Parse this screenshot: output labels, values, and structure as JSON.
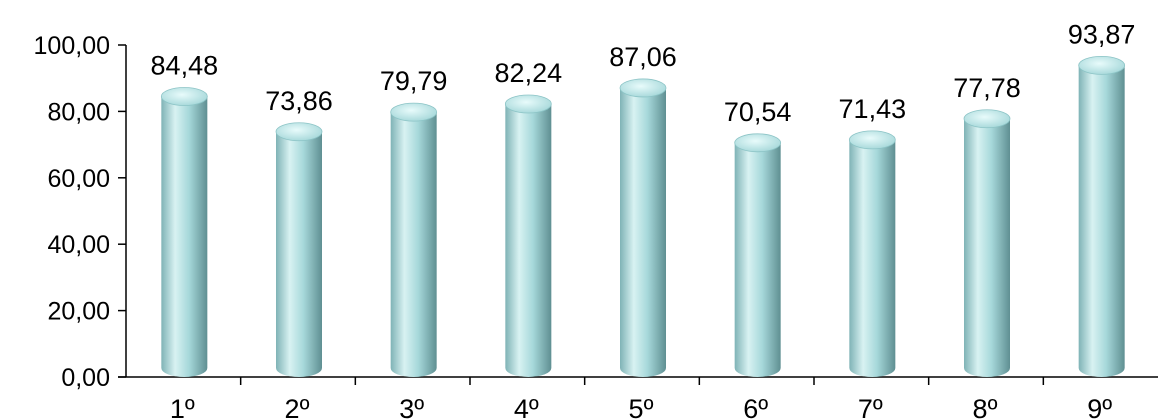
{
  "chart_data": {
    "type": "bar",
    "categories": [
      "1º",
      "2º",
      "3º",
      "4º",
      "5º",
      "6º",
      "7º",
      "8º",
      "9º"
    ],
    "values": [
      84.48,
      73.86,
      79.79,
      82.24,
      87.06,
      70.54,
      71.43,
      77.78,
      93.87
    ],
    "value_labels": [
      "84,48",
      "73,86",
      "79,79",
      "82,24",
      "87,06",
      "70,54",
      "71,43",
      "77,78",
      "93,87"
    ],
    "y_ticks": [
      0,
      20,
      40,
      60,
      80,
      100
    ],
    "y_tick_labels": [
      "0,00",
      "20,00",
      "40,00",
      "60,00",
      "80,00",
      "100,00"
    ],
    "ylim": [
      0,
      100
    ],
    "grid": false,
    "legend": "none",
    "colors": {
      "bar": "#9fd4d6",
      "bar_highlight": "#d8f2f2",
      "bar_shadow": "#5f8f92",
      "axis": "#000000"
    }
  }
}
